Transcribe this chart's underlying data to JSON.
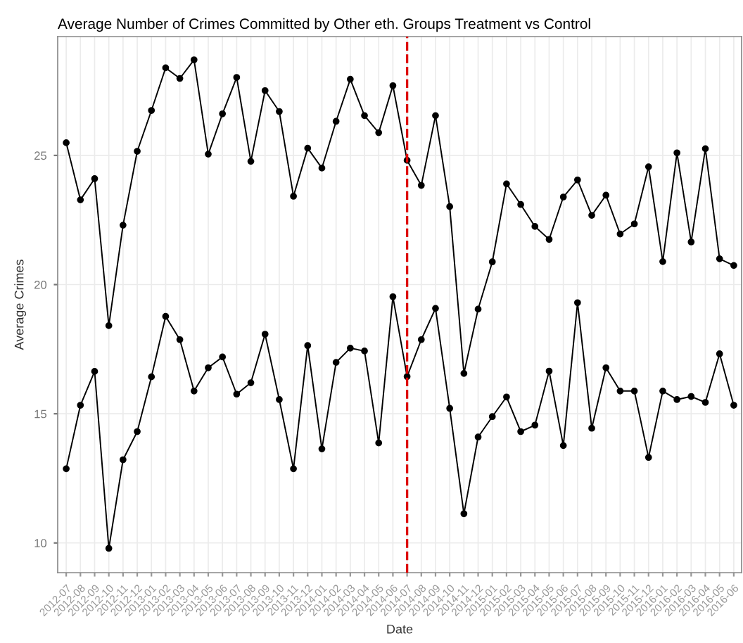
{
  "chart_data": {
    "type": "line",
    "title": "Average Number of Crimes Committed by Other eth. Groups Treatment vs Control",
    "xlabel": "Date",
    "ylabel": "Average Crimes",
    "categories": [
      "2012-07",
      "2012-08",
      "2012-09",
      "2012-10",
      "2012-11",
      "2012-12",
      "2013-01",
      "2013-02",
      "2013-03",
      "2013-04",
      "2013-05",
      "2013-06",
      "2013-07",
      "2013-08",
      "2013-09",
      "2013-10",
      "2013-11",
      "2013-12",
      "2014-01",
      "2014-02",
      "2014-03",
      "2014-04",
      "2014-05",
      "2014-06",
      "2014-07",
      "2014-08",
      "2014-09",
      "2014-10",
      "2014-11",
      "2014-12",
      "2015-01",
      "2015-02",
      "2015-03",
      "2015-04",
      "2015-05",
      "2015-06",
      "2015-07",
      "2015-08",
      "2015-09",
      "2015-10",
      "2015-11",
      "2015-12",
      "2016-01",
      "2016-02",
      "2016-03",
      "2016-04",
      "2016-05",
      "2016-06"
    ],
    "series": [
      {
        "color": "#000000",
        "values": [
          25.49,
          23.28,
          24.1,
          18.41,
          22.3,
          25.16,
          26.74,
          28.39,
          27.98,
          28.7,
          25.05,
          26.61,
          28.02,
          24.77,
          27.51,
          26.7,
          23.42,
          25.28,
          24.51,
          26.32,
          27.95,
          26.54,
          25.88,
          27.7,
          24.81,
          23.84,
          26.54,
          23.02,
          16.56,
          19.05,
          20.88,
          23.9,
          23.1,
          22.25,
          21.75,
          23.39,
          24.05,
          22.68,
          23.46,
          21.96,
          22.35,
          24.56,
          20.89,
          25.1,
          21.65,
          25.26,
          21.0,
          20.74
        ]
      },
      {
        "color": "#000000",
        "values": [
          12.87,
          15.33,
          16.64,
          9.79,
          13.22,
          14.31,
          16.43,
          18.77,
          17.87,
          15.88,
          16.78,
          17.2,
          15.76,
          16.2,
          18.08,
          15.55,
          12.87,
          17.64,
          13.64,
          16.99,
          17.54,
          17.43,
          13.87,
          19.53,
          16.44,
          17.87,
          19.08,
          15.21,
          11.13,
          14.1,
          14.89,
          15.65,
          14.31,
          14.56,
          16.65,
          13.77,
          19.3,
          14.44,
          16.78,
          15.88,
          15.88,
          13.31,
          15.88,
          15.55,
          15.67,
          15.44,
          17.32,
          15.33
        ]
      }
    ],
    "ylim": [
      8.85,
      29.6
    ],
    "yticks": [
      10,
      15,
      20,
      25
    ],
    "grid": true,
    "marker": "circle",
    "line_style": "solid",
    "ref_lines": [
      {
        "axis": "x",
        "value": "2014-07",
        "color": "#dd0000",
        "line_style": "dashed"
      }
    ]
  }
}
